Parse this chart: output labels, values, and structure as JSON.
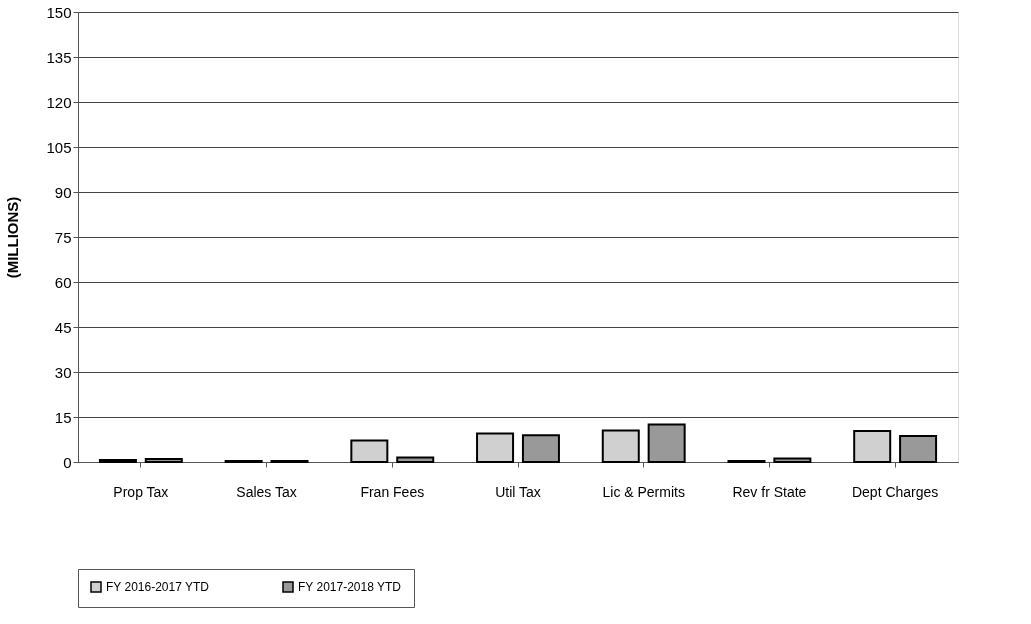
{
  "chart_data": {
    "type": "bar",
    "ylabel": "(MILLIONS)",
    "categories": [
      "Prop Tax",
      "Sales Tax",
      "Fran Fees",
      "Util Tax",
      "Lic & Permits",
      "Rev fr State",
      "Dept Charges"
    ],
    "series": [
      {
        "name": "FY 2016-2017 YTD",
        "color": "#d0d0d0",
        "values": [
          0.7,
          0.3,
          7.2,
          9.5,
          10.5,
          0.3,
          10.3
        ]
      },
      {
        "name": "FY 2017-2018 YTD",
        "color": "#999999",
        "values": [
          1.0,
          0.3,
          1.5,
          8.9,
          12.5,
          1.2,
          8.7
        ]
      }
    ],
    "ylim": [
      0,
      150
    ],
    "yticks": [
      0,
      15,
      30,
      45,
      60,
      75,
      90,
      105,
      120,
      135,
      150
    ],
    "grid": "y",
    "legend": "bottom"
  }
}
